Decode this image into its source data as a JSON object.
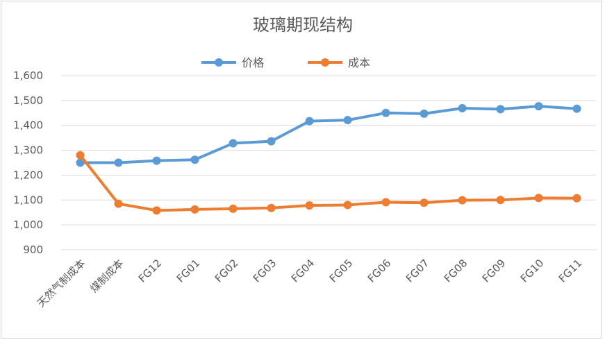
{
  "chart_data": {
    "type": "line",
    "title": "玻璃期现结构",
    "categories": [
      "天然气制成本",
      "煤制成本",
      "FG12",
      "FG01",
      "FG02",
      "FG03",
      "FG04",
      "FG05",
      "FG06",
      "FG07",
      "FG08",
      "FG09",
      "FG10",
      "FG11"
    ],
    "series": [
      {
        "name": "价格",
        "color": "#5B9BD5",
        "values": [
          1250,
          1250,
          1258,
          1262,
          1328,
          1336,
          1417,
          1421,
          1450,
          1447,
          1469,
          1465,
          1477,
          1467
        ]
      },
      {
        "name": "成本",
        "color": "#ED7D31",
        "values": [
          1280,
          1085,
          1058,
          1062,
          1065,
          1068,
          1078,
          1080,
          1091,
          1089,
          1099,
          1100,
          1108,
          1107
        ]
      }
    ],
    "ylim": [
      900,
      1600
    ],
    "yticks": [
      "1,600",
      "1,500",
      "1,400",
      "1,300",
      "1,200",
      "1,100",
      "1,000",
      "900"
    ],
    "ytick_values": [
      1600,
      1500,
      1400,
      1300,
      1200,
      1100,
      1000,
      900
    ],
    "grid": true,
    "legend_position": "top"
  }
}
